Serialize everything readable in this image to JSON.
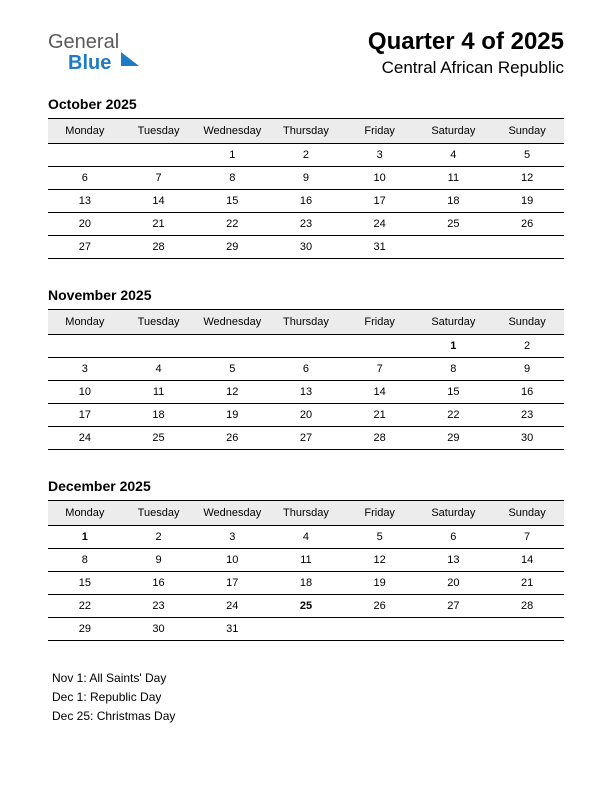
{
  "logo": {
    "part1": "General",
    "part2": "Blue"
  },
  "title": "Quarter 4 of 2025",
  "subtitle": "Central African Republic",
  "weekdays": [
    "Monday",
    "Tuesday",
    "Wednesday",
    "Thursday",
    "Friday",
    "Saturday",
    "Sunday"
  ],
  "colors": {
    "holiday": "#d40000",
    "header_bg": "#ececec",
    "rule": "#000000",
    "logo_blue": "#1e7bc8",
    "logo_gray": "#5a5a5a"
  },
  "months": [
    {
      "name": "October 2025",
      "weeks": [
        [
          "",
          "",
          "1",
          "2",
          "3",
          "4",
          "5"
        ],
        [
          "6",
          "7",
          "8",
          "9",
          "10",
          "11",
          "12"
        ],
        [
          "13",
          "14",
          "15",
          "16",
          "17",
          "18",
          "19"
        ],
        [
          "20",
          "21",
          "22",
          "23",
          "24",
          "25",
          "26"
        ],
        [
          "27",
          "28",
          "29",
          "30",
          "31",
          "",
          ""
        ]
      ],
      "holidays": []
    },
    {
      "name": "November 2025",
      "weeks": [
        [
          "",
          "",
          "",
          "",
          "",
          "1",
          "2"
        ],
        [
          "3",
          "4",
          "5",
          "6",
          "7",
          "8",
          "9"
        ],
        [
          "10",
          "11",
          "12",
          "13",
          "14",
          "15",
          "16"
        ],
        [
          "17",
          "18",
          "19",
          "20",
          "21",
          "22",
          "23"
        ],
        [
          "24",
          "25",
          "26",
          "27",
          "28",
          "29",
          "30"
        ]
      ],
      "holidays": [
        "1"
      ]
    },
    {
      "name": "December 2025",
      "weeks": [
        [
          "1",
          "2",
          "3",
          "4",
          "5",
          "6",
          "7"
        ],
        [
          "8",
          "9",
          "10",
          "11",
          "12",
          "13",
          "14"
        ],
        [
          "15",
          "16",
          "17",
          "18",
          "19",
          "20",
          "21"
        ],
        [
          "22",
          "23",
          "24",
          "25",
          "26",
          "27",
          "28"
        ],
        [
          "29",
          "30",
          "31",
          "",
          "",
          "",
          ""
        ]
      ],
      "holidays": [
        "1",
        "25"
      ]
    }
  ],
  "holiday_notes": [
    "Nov 1: All Saints' Day",
    "Dec 1: Republic Day",
    "Dec 25: Christmas Day"
  ]
}
